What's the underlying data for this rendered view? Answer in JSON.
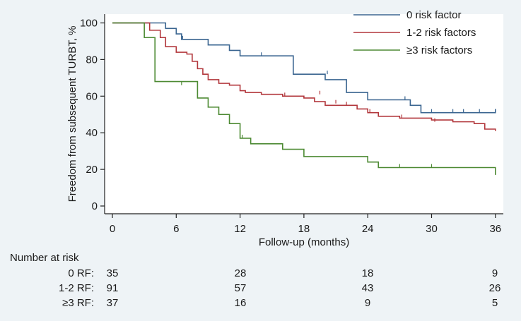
{
  "chart_data": {
    "type": "line",
    "step": true,
    "xlabel": "Follow-up (months)",
    "ylabel": "Freedom from subsequent TURBT, %",
    "xlim": [
      0,
      36
    ],
    "ylim": [
      0,
      100
    ],
    "xticks": [
      0,
      6,
      12,
      18,
      24,
      30,
      36
    ],
    "yticks": [
      0,
      20,
      40,
      60,
      80,
      100
    ],
    "legend_position": "top-right",
    "series": [
      {
        "name": "0 risk factor",
        "color": "#3a6590",
        "points": [
          [
            0,
            100
          ],
          [
            4,
            100
          ],
          [
            5,
            97
          ],
          [
            6,
            94
          ],
          [
            6.5,
            91
          ],
          [
            8.5,
            91
          ],
          [
            9,
            88
          ],
          [
            10.5,
            88
          ],
          [
            11,
            85
          ],
          [
            12,
            82
          ],
          [
            17,
            82
          ],
          [
            17,
            72
          ],
          [
            20,
            72
          ],
          [
            20,
            69
          ],
          [
            21,
            69
          ],
          [
            22,
            62
          ],
          [
            24,
            62
          ],
          [
            24,
            58
          ],
          [
            28,
            58
          ],
          [
            28,
            55
          ],
          [
            29,
            55
          ],
          [
            29,
            51
          ],
          [
            36,
            51
          ],
          [
            36,
            53
          ]
        ],
        "censored": [
          [
            6.6,
            91
          ],
          [
            14,
            82
          ],
          [
            20.2,
            72
          ],
          [
            27.5,
            58
          ],
          [
            30,
            51
          ],
          [
            32,
            51
          ],
          [
            33,
            51
          ],
          [
            34.5,
            51
          ]
        ]
      },
      {
        "name": "1-2 risk factors",
        "color": "#b2373c",
        "points": [
          [
            0,
            100
          ],
          [
            3,
            100
          ],
          [
            3.5,
            96
          ],
          [
            4.5,
            92
          ],
          [
            5,
            87
          ],
          [
            6,
            84
          ],
          [
            7,
            83
          ],
          [
            7.5,
            79
          ],
          [
            8,
            75
          ],
          [
            8.5,
            72
          ],
          [
            9,
            69
          ],
          [
            10,
            67
          ],
          [
            11,
            66
          ],
          [
            12,
            63
          ],
          [
            12.5,
            62
          ],
          [
            14,
            61
          ],
          [
            16,
            60
          ],
          [
            18,
            59
          ],
          [
            19,
            57
          ],
          [
            20,
            55
          ],
          [
            22.5,
            55
          ],
          [
            23,
            53
          ],
          [
            24,
            51
          ],
          [
            25,
            49
          ],
          [
            27,
            48
          ],
          [
            30,
            47
          ],
          [
            32,
            46
          ],
          [
            34,
            45
          ],
          [
            35,
            42
          ],
          [
            36,
            41
          ]
        ],
        "censored": [
          [
            16.2,
            60
          ],
          [
            19.5,
            61
          ],
          [
            21,
            56
          ],
          [
            22,
            55
          ],
          [
            24.2,
            51
          ],
          [
            27.2,
            48
          ],
          [
            30.3,
            46
          ]
        ]
      },
      {
        "name": "≥3 risk factors",
        "color": "#4d8a33",
        "points": [
          [
            0,
            100
          ],
          [
            3,
            100
          ],
          [
            3,
            92
          ],
          [
            4,
            92
          ],
          [
            4,
            68
          ],
          [
            8,
            68
          ],
          [
            8,
            59
          ],
          [
            9,
            59
          ],
          [
            9,
            54
          ],
          [
            10,
            54
          ],
          [
            10,
            50
          ],
          [
            11,
            50
          ],
          [
            11,
            45
          ],
          [
            12,
            45
          ],
          [
            12,
            37
          ],
          [
            13,
            37
          ],
          [
            13,
            34
          ],
          [
            16,
            34
          ],
          [
            16,
            31
          ],
          [
            18,
            31
          ],
          [
            18,
            27
          ],
          [
            24,
            27
          ],
          [
            24,
            24
          ],
          [
            25,
            24
          ],
          [
            25,
            21
          ],
          [
            36,
            21
          ],
          [
            36,
            17
          ]
        ],
        "censored": [
          [
            6.5,
            66
          ],
          [
            12.2,
            37
          ],
          [
            27,
            21
          ],
          [
            30,
            21
          ]
        ]
      }
    ],
    "risk_table": {
      "title": "Number at risk",
      "time_points": [
        0,
        12,
        24,
        36
      ],
      "rows": [
        {
          "label": "0 RF:",
          "values": [
            "35",
            "28",
            "18",
            "9"
          ]
        },
        {
          "label": "1-2 RF:",
          "values": [
            "91",
            "57",
            "43",
            "26"
          ]
        },
        {
          "label": "≥3 RF:",
          "values": [
            "37",
            "16",
            "9",
            "5"
          ]
        }
      ]
    }
  }
}
